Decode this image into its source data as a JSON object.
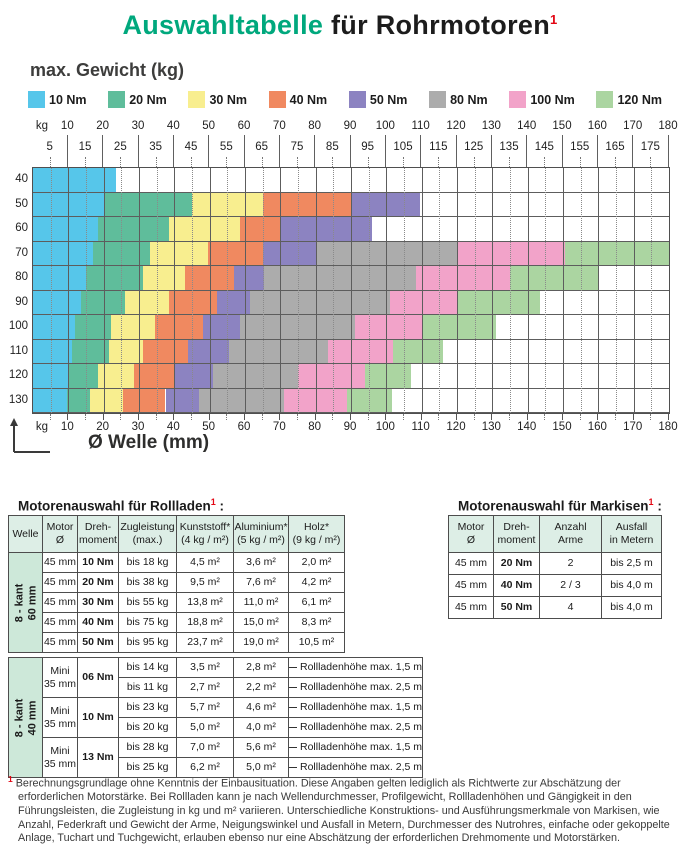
{
  "page": {
    "title": {
      "highlight": "Auswahltabelle",
      "rest": " für Rohrmotoren",
      "sup": "1"
    },
    "kg_unit": "kg",
    "tables": {
      "rollladen": {
        "title": "Motorenauswahl für Rollladen",
        "sup": "1",
        "colon": " :",
        "headers": [
          [
            "Welle"
          ],
          [
            "Motor",
            "Ø"
          ],
          [
            "Dreh-",
            "moment"
          ],
          [
            "Zugleistung",
            "(max.)"
          ],
          [
            "Kunststoff*",
            "(4 kg / m²)"
          ],
          [
            "Aluminium*",
            "(5 kg / m²)"
          ],
          [
            "Holz*",
            "(9 kg / m²)"
          ]
        ],
        "group1": {
          "label": [
            "8 - kant",
            "60 mm"
          ],
          "rows": [
            [
              "45 mm",
              "10 Nm",
              "bis 18 kg",
              "4,5 m²",
              "3,6 m²",
              "2,0 m²"
            ],
            [
              "45 mm",
              "20 Nm",
              "bis 38 kg",
              "9,5 m²",
              "7,6 m²",
              "4,2 m²"
            ],
            [
              "45 mm",
              "30 Nm",
              "bis 55 kg",
              "13,8 m²",
              "11,0 m²",
              "6,1 m²"
            ],
            [
              "45 mm",
              "40 Nm",
              "bis 75 kg",
              "18,8 m²",
              "15,0 m²",
              "8,3 m²"
            ],
            [
              "45 mm",
              "50 Nm",
              "bis 95 kg",
              "23,7 m²",
              "19,0 m²",
              "10,5 m²"
            ]
          ]
        },
        "group2": {
          "label": [
            "8 - kant",
            "40 mm"
          ],
          "pairs": [
            {
              "motor": [
                "Mini",
                "35 mm"
              ],
              "torque": "06 Nm",
              "rows": [
                [
                  "bis 14 kg",
                  "3,5 m²",
                  "2,8 m²",
                  "Rollladenhöhe max. 1,5 m"
                ],
                [
                  "bis 11 kg",
                  "2,7 m²",
                  "2,2 m²",
                  "Rollladenhöhe max. 2,5 m"
                ]
              ]
            },
            {
              "motor": [
                "Mini",
                "35 mm"
              ],
              "torque": "10 Nm",
              "rows": [
                [
                  "bis 23 kg",
                  "5,7 m²",
                  "4,6 m²",
                  "Rollladenhöhe max. 1,5 m"
                ],
                [
                  "bis 20 kg",
                  "5,0 m²",
                  "4,0 m²",
                  "Rollladenhöhe max. 2,5 m"
                ]
              ]
            },
            {
              "motor": [
                "Mini",
                "35 mm"
              ],
              "torque": "13 Nm",
              "rows": [
                [
                  "bis 28 kg",
                  "7,0 m²",
                  "5,6 m²",
                  "Rollladenhöhe max. 1,5 m"
                ],
                [
                  "bis 25 kg",
                  "6,2 m²",
                  "5,0 m²",
                  "Rollladenhöhe max. 2,5 m"
                ]
              ]
            }
          ]
        }
      },
      "markisen": {
        "title": "Motorenauswahl für Markisen",
        "sup": "1",
        "colon": " :",
        "headers": [
          [
            "Motor",
            "Ø"
          ],
          [
            "Dreh-",
            "moment"
          ],
          [
            "Anzahl",
            "Arme"
          ],
          [
            "Ausfall",
            "in Metern"
          ]
        ],
        "rows": [
          [
            "45 mm",
            "20 Nm",
            "2",
            "bis 2,5 m"
          ],
          [
            "45 mm",
            "40 Nm",
            "2 / 3",
            "bis 4,0 m"
          ],
          [
            "45 mm",
            "50 Nm",
            "4",
            "bis 4,0 m"
          ]
        ]
      }
    },
    "footnote": {
      "sup": "1",
      "text": "Berechnungsgrundlage ohne Kenntnis der Einbausituation. Diese Angaben gelten lediglich als Richtwerte zur Abschätzung der erforderlichen Motorstärke. Bei Rollladen kann je nach Wellendurchmesser, Profilgewicht, Rollladenhöhen und Gängigkeit in den Führungsleisten, die Zugleistung in kg und m² variieren. Unterschiedliche Konstruktions- und Ausführungsmerkmale von Markisen, wie Anzahl, Federkraft und Gewicht der Arme, Neigungswinkel und Ausfall in Metern, Durchmesser des Nutrohres, einfache oder gekoppelte Anlage, Tuchart und Tuchgewicht, erlauben ebenso nur eine Abschätzung der erforderlichen Drehmomente und Motorstärken."
    }
  },
  "chart_data": {
    "type": "heatmap",
    "title": "max. Gewicht (kg)",
    "xlabel": "Ø Welle (mm)",
    "ylabel": "max. Gewicht (kg)",
    "x_range": [
      0,
      180
    ],
    "x_major_ticks": [
      10,
      20,
      30,
      40,
      50,
      60,
      70,
      80,
      90,
      100,
      110,
      120,
      130,
      140,
      150,
      160,
      170,
      180
    ],
    "x_minor_ticks": [
      5,
      15,
      25,
      35,
      45,
      55,
      65,
      75,
      85,
      95,
      105,
      115,
      125,
      135,
      145,
      155,
      165,
      175
    ],
    "y_categories_kg": [
      40,
      50,
      60,
      70,
      80,
      90,
      100,
      110,
      120,
      130
    ],
    "grid": true,
    "legend_position": "top",
    "legend": [
      {
        "label": "10 Nm",
        "color": "#56C6EA"
      },
      {
        "label": "20 Nm",
        "color": "#5FBD9B"
      },
      {
        "label": "30 Nm",
        "color": "#F8EE8F"
      },
      {
        "label": "40 Nm",
        "color": "#F08960"
      },
      {
        "label": "50 Nm",
        "color": "#8C83C1"
      },
      {
        "label": "80 Nm",
        "color": "#ACACAC"
      },
      {
        "label": "100 Nm",
        "color": "#F2A3C9"
      },
      {
        "label": "120 Nm",
        "color": "#ABD5A1"
      }
    ],
    "rows": [
      {
        "kg": "40",
        "segments": [
          {
            "torque": "10 Nm",
            "from_mm": 0,
            "to_mm": 23.5
          }
        ]
      },
      {
        "kg": "50",
        "segments": [
          {
            "torque": "10 Nm",
            "from_mm": 0,
            "to_mm": 20
          },
          {
            "torque": "20 Nm",
            "from_mm": 20,
            "to_mm": 45
          },
          {
            "torque": "30 Nm",
            "from_mm": 45,
            "to_mm": 65
          },
          {
            "torque": "40 Nm",
            "from_mm": 65,
            "to_mm": 90
          },
          {
            "torque": "50 Nm",
            "from_mm": 90,
            "to_mm": 109.5
          }
        ]
      },
      {
        "kg": "60",
        "segments": [
          {
            "torque": "10 Nm",
            "from_mm": 0,
            "to_mm": 18.5
          },
          {
            "torque": "20 Nm",
            "from_mm": 18.5,
            "to_mm": 38.5
          },
          {
            "torque": "30 Nm",
            "from_mm": 38.5,
            "to_mm": 58.5
          },
          {
            "torque": "40 Nm",
            "from_mm": 58.5,
            "to_mm": 70
          },
          {
            "torque": "50 Nm",
            "from_mm": 70,
            "to_mm": 96
          }
        ]
      },
      {
        "kg": "70",
        "segments": [
          {
            "torque": "10 Nm",
            "from_mm": 0,
            "to_mm": 17
          },
          {
            "torque": "20 Nm",
            "from_mm": 17,
            "to_mm": 33
          },
          {
            "torque": "30 Nm",
            "from_mm": 33,
            "to_mm": 49.5
          },
          {
            "torque": "40 Nm",
            "from_mm": 49.5,
            "to_mm": 65
          },
          {
            "torque": "50 Nm",
            "from_mm": 65,
            "to_mm": 80
          },
          {
            "torque": "80 Nm",
            "from_mm": 80,
            "to_mm": 120
          },
          {
            "torque": "100 Nm",
            "from_mm": 120,
            "to_mm": 150.5
          },
          {
            "torque": "120 Nm",
            "from_mm": 150.5,
            "to_mm": 180
          }
        ]
      },
      {
        "kg": "80",
        "segments": [
          {
            "torque": "10 Nm",
            "from_mm": 0,
            "to_mm": 15
          },
          {
            "torque": "20 Nm",
            "from_mm": 15,
            "to_mm": 31
          },
          {
            "torque": "30 Nm",
            "from_mm": 31,
            "to_mm": 43
          },
          {
            "torque": "40 Nm",
            "from_mm": 43,
            "to_mm": 57
          },
          {
            "torque": "50 Nm",
            "from_mm": 57,
            "to_mm": 65.5
          },
          {
            "torque": "80 Nm",
            "from_mm": 65.5,
            "to_mm": 108.5
          },
          {
            "torque": "100 Nm",
            "from_mm": 108.5,
            "to_mm": 135
          },
          {
            "torque": "120 Nm",
            "from_mm": 135,
            "to_mm": 160
          }
        ]
      },
      {
        "kg": "90",
        "segments": [
          {
            "torque": "10 Nm",
            "from_mm": 0,
            "to_mm": 13.5
          },
          {
            "torque": "20 Nm",
            "from_mm": 13.5,
            "to_mm": 26
          },
          {
            "torque": "30 Nm",
            "from_mm": 26,
            "to_mm": 38.5
          },
          {
            "torque": "40 Nm",
            "from_mm": 38.5,
            "to_mm": 52
          },
          {
            "torque": "50 Nm",
            "from_mm": 52,
            "to_mm": 61.5
          },
          {
            "torque": "80 Nm",
            "from_mm": 61.5,
            "to_mm": 101
          },
          {
            "torque": "100 Nm",
            "from_mm": 101,
            "to_mm": 120
          },
          {
            "torque": "120 Nm",
            "from_mm": 120,
            "to_mm": 143.5
          }
        ]
      },
      {
        "kg": "100",
        "segments": [
          {
            "torque": "10 Nm",
            "from_mm": 0,
            "to_mm": 12
          },
          {
            "torque": "20 Nm",
            "from_mm": 12,
            "to_mm": 22
          },
          {
            "torque": "30 Nm",
            "from_mm": 22,
            "to_mm": 34.5
          },
          {
            "torque": "40 Nm",
            "from_mm": 34.5,
            "to_mm": 48
          },
          {
            "torque": "50 Nm",
            "from_mm": 48,
            "to_mm": 58.5
          },
          {
            "torque": "80 Nm",
            "from_mm": 58.5,
            "to_mm": 91
          },
          {
            "torque": "100 Nm",
            "from_mm": 91,
            "to_mm": 110.5
          },
          {
            "torque": "120 Nm",
            "from_mm": 110.5,
            "to_mm": 131
          }
        ]
      },
      {
        "kg": "110",
        "segments": [
          {
            "torque": "10 Nm",
            "from_mm": 0,
            "to_mm": 11
          },
          {
            "torque": "20 Nm",
            "from_mm": 11,
            "to_mm": 21.5
          },
          {
            "torque": "30 Nm",
            "from_mm": 21.5,
            "to_mm": 31
          },
          {
            "torque": "40 Nm",
            "from_mm": 31,
            "to_mm": 44
          },
          {
            "torque": "50 Nm",
            "from_mm": 44,
            "to_mm": 55.5
          },
          {
            "torque": "80 Nm",
            "from_mm": 55.5,
            "to_mm": 83.5
          },
          {
            "torque": "100 Nm",
            "from_mm": 83.5,
            "to_mm": 102
          },
          {
            "torque": "120 Nm",
            "from_mm": 102,
            "to_mm": 116
          }
        ]
      },
      {
        "kg": "120",
        "segments": [
          {
            "torque": "10 Nm",
            "from_mm": 0,
            "to_mm": 10
          },
          {
            "torque": "20 Nm",
            "from_mm": 10,
            "to_mm": 18.5
          },
          {
            "torque": "30 Nm",
            "from_mm": 18.5,
            "to_mm": 28.5
          },
          {
            "torque": "40 Nm",
            "from_mm": 28.5,
            "to_mm": 40
          },
          {
            "torque": "50 Nm",
            "from_mm": 40,
            "to_mm": 51
          },
          {
            "torque": "80 Nm",
            "from_mm": 51,
            "to_mm": 75
          },
          {
            "torque": "100 Nm",
            "from_mm": 75,
            "to_mm": 94
          },
          {
            "torque": "120 Nm",
            "from_mm": 94,
            "to_mm": 107
          }
        ]
      },
      {
        "kg": "130",
        "segments": [
          {
            "torque": "10 Nm",
            "from_mm": 0,
            "to_mm": 9.5
          },
          {
            "torque": "20 Nm",
            "from_mm": 9.5,
            "to_mm": 16
          },
          {
            "torque": "30 Nm",
            "from_mm": 16,
            "to_mm": 25.5
          },
          {
            "torque": "40 Nm",
            "from_mm": 25.5,
            "to_mm": 37.5
          },
          {
            "torque": "50 Nm",
            "from_mm": 37.5,
            "to_mm": 47
          },
          {
            "torque": "80 Nm",
            "from_mm": 47,
            "to_mm": 71
          },
          {
            "torque": "100 Nm",
            "from_mm": 71,
            "to_mm": 89
          },
          {
            "torque": "120 Nm",
            "from_mm": 89,
            "to_mm": 101.5
          }
        ]
      }
    ]
  }
}
